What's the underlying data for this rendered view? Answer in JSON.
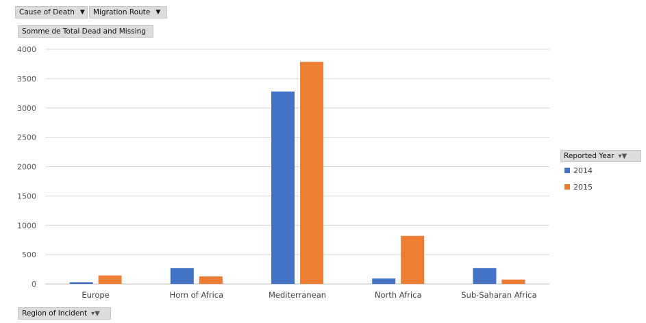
{
  "pivot": {
    "filters": [
      {
        "label": "Cause of Death",
        "icon": "dropdown-caret-icon"
      },
      {
        "label": "Migration Route",
        "icon": "dropdown-caret-icon"
      }
    ],
    "value_field": "Somme de Total Dead and Missing",
    "axis_field": "Region of Incident",
    "legend_field": "Reported Year"
  },
  "colors": {
    "2014": "#4472C4",
    "2015": "#ED7D31",
    "grid": "#d9d9d9"
  },
  "chart_data": {
    "type": "bar",
    "categories": [
      "Europe",
      "Horn of Africa",
      "Mediterranean",
      "North Africa",
      "Sub-Saharan Africa"
    ],
    "series": [
      {
        "name": "2014",
        "values": [
          30,
          270,
          3280,
          95,
          270
        ]
      },
      {
        "name": "2015",
        "values": [
          145,
          130,
          3785,
          820,
          75
        ]
      }
    ],
    "yticks": [
      0,
      500,
      1000,
      1500,
      2000,
      2500,
      3000,
      3500,
      4000
    ],
    "ylim": [
      0,
      4000
    ],
    "grid": true,
    "legend_position": "right"
  }
}
